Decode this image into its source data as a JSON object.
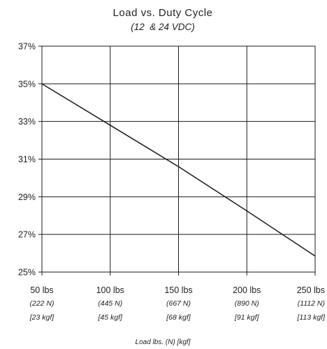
{
  "chart_data": {
    "type": "line",
    "title": "Load vs. Duty Cycle",
    "subtitle": "(12  & 24 VDC)",
    "xlabel": "Load lbs. (N) [kgf]",
    "ylabel": "",
    "x_ticks": [
      {
        "lbs": "50 lbs",
        "n": "(222 N)",
        "kgf": "[23 kgf]"
      },
      {
        "lbs": "100 lbs",
        "n": "(445 N)",
        "kgf": "[45 kgf]"
      },
      {
        "lbs": "150 lbs",
        "n": "(667 N)",
        "kgf": "[68 kgf]"
      },
      {
        "lbs": "200 lbs",
        "n": "(890 N)",
        "kgf": "[91 kgf]"
      },
      {
        "lbs": "250 lbs",
        "n": "(1112 N)",
        "kgf": "[113 kgf]"
      }
    ],
    "y_ticks": [
      "37%",
      "35%",
      "33%",
      "31%",
      "29%",
      "27%",
      "25%"
    ],
    "xlim": [
      50,
      250
    ],
    "ylim": [
      25,
      37
    ],
    "grid": true,
    "series": [
      {
        "x": [
          50,
          100,
          150,
          200,
          250
        ],
        "y": [
          35.0,
          32.8,
          30.6,
          28.25,
          25.85
        ]
      }
    ],
    "colors": {
      "line": "#1a1a1a",
      "grid": "#1a1a1a",
      "text": "#222222"
    }
  }
}
